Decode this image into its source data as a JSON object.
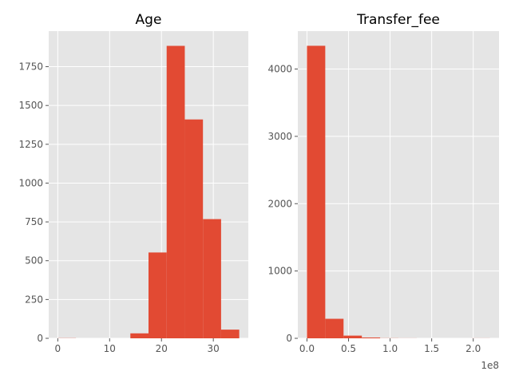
{
  "chart_data": [
    {
      "type": "bar",
      "title": "Age",
      "xlabel": "",
      "ylabel": "",
      "xlim": [
        -1.75,
        36.75
      ],
      "ylim": [
        0,
        1979
      ],
      "xticks": [
        0,
        10,
        20,
        30
      ],
      "xtick_labels": [
        "0",
        "10",
        "20",
        "30"
      ],
      "yticks": [
        0,
        250,
        500,
        750,
        1000,
        1250,
        1500,
        1750
      ],
      "ytick_labels": [
        "0",
        "250",
        "500",
        "750",
        "1000",
        "1250",
        "1500",
        "1750"
      ],
      "grid": true,
      "bin_edges": [
        0,
        3.5,
        7,
        10.5,
        14,
        17.5,
        21,
        24.5,
        28,
        31.5,
        35
      ],
      "values": [
        1,
        0,
        0,
        0,
        32,
        553,
        1884,
        1410,
        768,
        56
      ]
    },
    {
      "type": "bar",
      "title": "Transfer_fee",
      "xlabel": "",
      "ylabel": "",
      "offset_text": "1e8",
      "xlim": [
        -11000000,
        231000000
      ],
      "ylim": [
        0,
        4563
      ],
      "xticks": [
        0,
        50000000,
        100000000,
        150000000,
        200000000
      ],
      "xtick_labels": [
        "0.0",
        "0.5",
        "1.0",
        "1.5",
        "2.0"
      ],
      "yticks": [
        0,
        1000,
        2000,
        3000,
        4000
      ],
      "ytick_labels": [
        "0",
        "1000",
        "2000",
        "3000",
        "4000"
      ],
      "grid": true,
      "bin_edges": [
        0,
        22000000,
        44000000,
        66000000,
        88000000,
        110000000,
        132000000,
        154000000,
        176000000,
        198000000,
        220000000
      ],
      "values": [
        4345,
        290,
        40,
        12,
        2,
        1,
        0,
        0,
        0,
        1
      ]
    }
  ]
}
